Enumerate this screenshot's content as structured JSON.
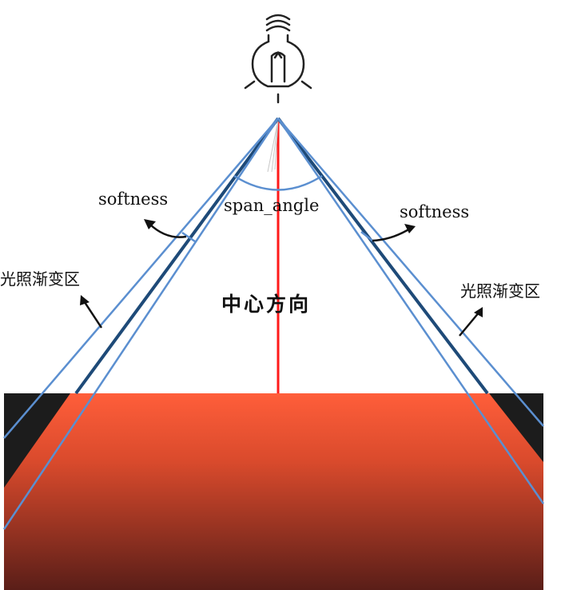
{
  "labels": {
    "softness_left": "softness",
    "softness_right": "softness",
    "span_angle": "span_angle",
    "falloff_left": "光照渐变区",
    "falloff_right": "光照渐变区",
    "center_direction": "中心方向"
  },
  "colors": {
    "outer_lines": "#5b8fd0",
    "inner_lines": "#1e4a78",
    "center_line": "#ff1a1a",
    "floor_top": "#ff5e3a",
    "floor_bottom": "#5a1e18",
    "shadow": "#1c1c1c"
  },
  "icon": "light-bulb-icon"
}
